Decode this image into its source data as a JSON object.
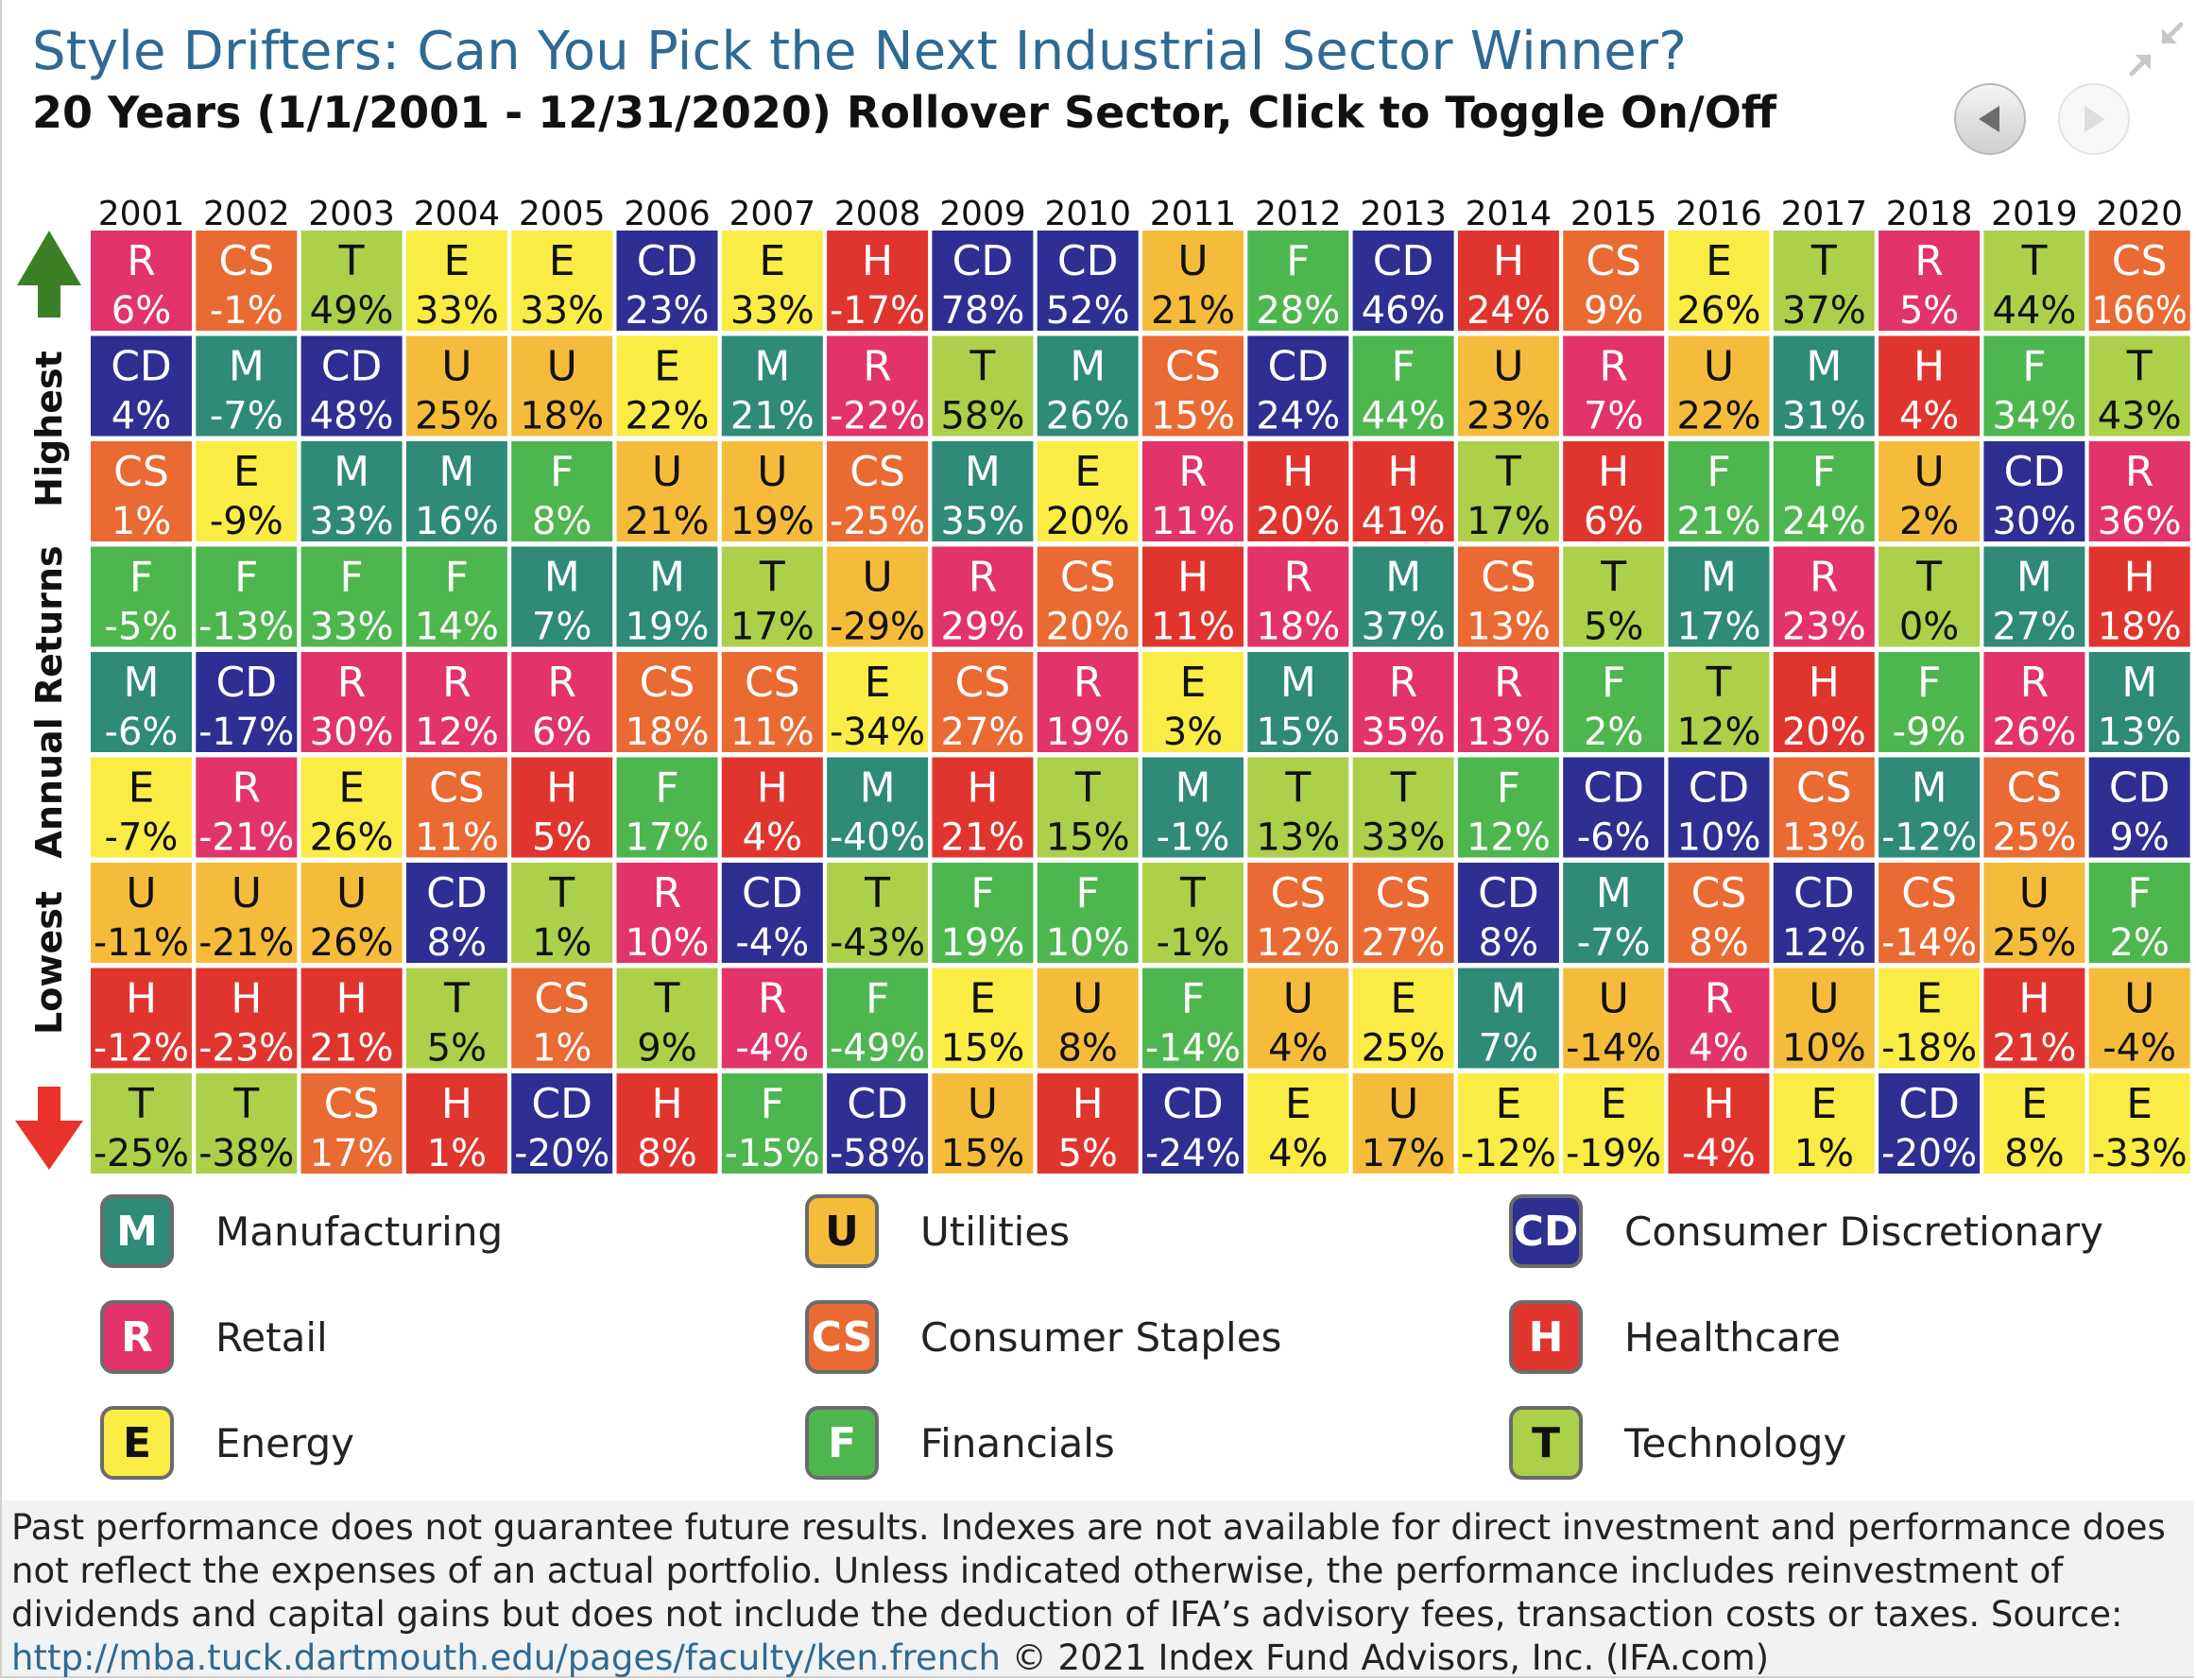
{
  "header": {
    "title": "Style Drifters: Can You Pick the Next Industrial Sector Winner?",
    "subtitle": "20 Years (1/1/2001 - 12/31/2020) Rollover Sector, Click to Toggle On/Off",
    "collapse_icon": "collapse-arrows-icon",
    "prev_icon": "triangle-left-icon",
    "next_icon": "triangle-right-icon"
  },
  "axis": {
    "top_label": "Highest",
    "middle_label": "Annual Returns",
    "bottom_label": "Lowest",
    "up_arrow_color": "#3d7f26",
    "down_arrow_color": "#e8322a"
  },
  "sectors": [
    {
      "code": "M",
      "name": "Manufacturing",
      "color": "#2f8a78",
      "text_color": "#ffffff"
    },
    {
      "code": "U",
      "name": "Utilities",
      "color": "#f5bc3c",
      "text_color": "#111111"
    },
    {
      "code": "CD",
      "name": "Consumer Discretionary",
      "color": "#2d2f92",
      "text_color": "#ffffff"
    },
    {
      "code": "R",
      "name": "Retail",
      "color": "#e2336a",
      "text_color": "#ffffff"
    },
    {
      "code": "CS",
      "name": "Consumer Staples",
      "color": "#e96a32",
      "text_color": "#ffffff"
    },
    {
      "code": "H",
      "name": "Healthcare",
      "color": "#e0352e",
      "text_color": "#ffffff"
    },
    {
      "code": "E",
      "name": "Energy",
      "color": "#f9ec45",
      "text_color": "#111111"
    },
    {
      "code": "F",
      "name": "Financials",
      "color": "#4eb64f",
      "text_color": "#ffffff"
    },
    {
      "code": "T",
      "name": "Technology",
      "color": "#acd04a",
      "text_color": "#111111"
    }
  ],
  "chart_data": {
    "type": "table",
    "title": "Style Drifters: Can You Pick the Next Industrial Sector Winner?",
    "subtitle": "20 Years (1/1/2001 - 12/31/2020) Rollover Sector, Click to Toggle On/Off",
    "ylabel": "Annual Returns",
    "years": [
      "2001",
      "2002",
      "2003",
      "2004",
      "2005",
      "2006",
      "2007",
      "2008",
      "2009",
      "2010",
      "2011",
      "2012",
      "2013",
      "2014",
      "2015",
      "2016",
      "2017",
      "2018",
      "2019",
      "2020"
    ],
    "columns": [
      [
        [
          "R",
          "6%"
        ],
        [
          "CD",
          "4%"
        ],
        [
          "CS",
          "1%"
        ],
        [
          "F",
          "-5%"
        ],
        [
          "M",
          "-6%"
        ],
        [
          "E",
          "-7%"
        ],
        [
          "U",
          "-11%"
        ],
        [
          "H",
          "-12%"
        ],
        [
          "T",
          "-25%"
        ]
      ],
      [
        [
          "CS",
          "-1%"
        ],
        [
          "M",
          "-7%"
        ],
        [
          "E",
          "-9%"
        ],
        [
          "F",
          "-13%"
        ],
        [
          "CD",
          "-17%"
        ],
        [
          "R",
          "-21%"
        ],
        [
          "U",
          "-21%"
        ],
        [
          "H",
          "-23%"
        ],
        [
          "T",
          "-38%"
        ]
      ],
      [
        [
          "T",
          "49%"
        ],
        [
          "CD",
          "48%"
        ],
        [
          "M",
          "33%"
        ],
        [
          "F",
          "33%"
        ],
        [
          "R",
          "30%"
        ],
        [
          "E",
          "26%"
        ],
        [
          "U",
          "26%"
        ],
        [
          "H",
          "21%"
        ],
        [
          "CS",
          "17%"
        ]
      ],
      [
        [
          "E",
          "33%"
        ],
        [
          "U",
          "25%"
        ],
        [
          "M",
          "16%"
        ],
        [
          "F",
          "14%"
        ],
        [
          "R",
          "12%"
        ],
        [
          "CS",
          "11%"
        ],
        [
          "CD",
          "8%"
        ],
        [
          "T",
          "5%"
        ],
        [
          "H",
          "1%"
        ]
      ],
      [
        [
          "E",
          "33%"
        ],
        [
          "U",
          "18%"
        ],
        [
          "F",
          "8%"
        ],
        [
          "M",
          "7%"
        ],
        [
          "R",
          "6%"
        ],
        [
          "H",
          "5%"
        ],
        [
          "T",
          "1%"
        ],
        [
          "CS",
          "1%"
        ],
        [
          "CD",
          "-20%"
        ]
      ],
      [
        [
          "CD",
          "23%"
        ],
        [
          "E",
          "22%"
        ],
        [
          "U",
          "21%"
        ],
        [
          "M",
          "19%"
        ],
        [
          "CS",
          "18%"
        ],
        [
          "F",
          "17%"
        ],
        [
          "R",
          "10%"
        ],
        [
          "T",
          "9%"
        ],
        [
          "H",
          "8%"
        ]
      ],
      [
        [
          "E",
          "33%"
        ],
        [
          "M",
          "21%"
        ],
        [
          "U",
          "19%"
        ],
        [
          "T",
          "17%"
        ],
        [
          "CS",
          "11%"
        ],
        [
          "H",
          "4%"
        ],
        [
          "CD",
          "-4%"
        ],
        [
          "R",
          "-4%"
        ],
        [
          "F",
          "-15%"
        ]
      ],
      [
        [
          "H",
          "-17%"
        ],
        [
          "R",
          "-22%"
        ],
        [
          "CS",
          "-25%"
        ],
        [
          "U",
          "-29%"
        ],
        [
          "E",
          "-34%"
        ],
        [
          "M",
          "-40%"
        ],
        [
          "T",
          "-43%"
        ],
        [
          "F",
          "-49%"
        ],
        [
          "CD",
          "-58%"
        ]
      ],
      [
        [
          "CD",
          "78%"
        ],
        [
          "T",
          "58%"
        ],
        [
          "M",
          "35%"
        ],
        [
          "R",
          "29%"
        ],
        [
          "CS",
          "27%"
        ],
        [
          "H",
          "21%"
        ],
        [
          "F",
          "19%"
        ],
        [
          "E",
          "15%"
        ],
        [
          "U",
          "15%"
        ]
      ],
      [
        [
          "CD",
          "52%"
        ],
        [
          "M",
          "26%"
        ],
        [
          "E",
          "20%"
        ],
        [
          "CS",
          "20%"
        ],
        [
          "R",
          "19%"
        ],
        [
          "T",
          "15%"
        ],
        [
          "F",
          "10%"
        ],
        [
          "U",
          "8%"
        ],
        [
          "H",
          "5%"
        ]
      ],
      [
        [
          "U",
          "21%"
        ],
        [
          "CS",
          "15%"
        ],
        [
          "R",
          "11%"
        ],
        [
          "H",
          "11%"
        ],
        [
          "E",
          "3%"
        ],
        [
          "M",
          "-1%"
        ],
        [
          "T",
          "-1%"
        ],
        [
          "F",
          "-14%"
        ],
        [
          "CD",
          "-24%"
        ]
      ],
      [
        [
          "F",
          "28%"
        ],
        [
          "CD",
          "24%"
        ],
        [
          "H",
          "20%"
        ],
        [
          "R",
          "18%"
        ],
        [
          "M",
          "15%"
        ],
        [
          "T",
          "13%"
        ],
        [
          "CS",
          "12%"
        ],
        [
          "U",
          "4%"
        ],
        [
          "E",
          "4%"
        ]
      ],
      [
        [
          "CD",
          "46%"
        ],
        [
          "F",
          "44%"
        ],
        [
          "H",
          "41%"
        ],
        [
          "M",
          "37%"
        ],
        [
          "R",
          "35%"
        ],
        [
          "T",
          "33%"
        ],
        [
          "CS",
          "27%"
        ],
        [
          "E",
          "25%"
        ],
        [
          "U",
          "17%"
        ]
      ],
      [
        [
          "H",
          "24%"
        ],
        [
          "U",
          "23%"
        ],
        [
          "T",
          "17%"
        ],
        [
          "CS",
          "13%"
        ],
        [
          "R",
          "13%"
        ],
        [
          "F",
          "12%"
        ],
        [
          "CD",
          "8%"
        ],
        [
          "M",
          "7%"
        ],
        [
          "E",
          "-12%"
        ]
      ],
      [
        [
          "CS",
          "9%"
        ],
        [
          "R",
          "7%"
        ],
        [
          "H",
          "6%"
        ],
        [
          "T",
          "5%"
        ],
        [
          "F",
          "2%"
        ],
        [
          "CD",
          "-6%"
        ],
        [
          "M",
          "-7%"
        ],
        [
          "U",
          "-14%"
        ],
        [
          "E",
          "-19%"
        ]
      ],
      [
        [
          "E",
          "26%"
        ],
        [
          "U",
          "22%"
        ],
        [
          "F",
          "21%"
        ],
        [
          "M",
          "17%"
        ],
        [
          "T",
          "12%"
        ],
        [
          "CD",
          "10%"
        ],
        [
          "CS",
          "8%"
        ],
        [
          "R",
          "4%"
        ],
        [
          "H",
          "-4%"
        ]
      ],
      [
        [
          "T",
          "37%"
        ],
        [
          "M",
          "31%"
        ],
        [
          "F",
          "24%"
        ],
        [
          "R",
          "23%"
        ],
        [
          "H",
          "20%"
        ],
        [
          "CS",
          "13%"
        ],
        [
          "CD",
          "12%"
        ],
        [
          "U",
          "10%"
        ],
        [
          "E",
          "1%"
        ]
      ],
      [
        [
          "R",
          "5%"
        ],
        [
          "H",
          "4%"
        ],
        [
          "U",
          "2%"
        ],
        [
          "T",
          "0%"
        ],
        [
          "F",
          "-9%"
        ],
        [
          "M",
          "-12%"
        ],
        [
          "CS",
          "-14%"
        ],
        [
          "E",
          "-18%"
        ],
        [
          "CD",
          "-20%"
        ]
      ],
      [
        [
          "T",
          "44%"
        ],
        [
          "F",
          "34%"
        ],
        [
          "CD",
          "30%"
        ],
        [
          "M",
          "27%"
        ],
        [
          "R",
          "26%"
        ],
        [
          "CS",
          "25%"
        ],
        [
          "U",
          "25%"
        ],
        [
          "H",
          "21%"
        ],
        [
          "E",
          "8%"
        ]
      ],
      [
        [
          "CS",
          "166%"
        ],
        [
          "T",
          "43%"
        ],
        [
          "R",
          "36%"
        ],
        [
          "H",
          "18%"
        ],
        [
          "M",
          "13%"
        ],
        [
          "CD",
          "9%"
        ],
        [
          "F",
          "2%"
        ],
        [
          "U",
          "-4%"
        ],
        [
          "E",
          "-33%"
        ]
      ]
    ]
  },
  "footnote": {
    "text": "Past performance does not guarantee future results. Indexes are not available for direct investment and performance does not reflect the expenses of an actual portfolio. Unless indicated otherwise, the performance includes reinvestment of dividends and capital gains but does not include the deduction of IFA’s advisory fees, transaction costs or taxes. Source: ",
    "link": "http://mba.tuck.dartmouth.edu/pages/faculty/ken.french",
    "copyright": " © 2021 Index Fund Advisors, Inc. (IFA.com)"
  }
}
